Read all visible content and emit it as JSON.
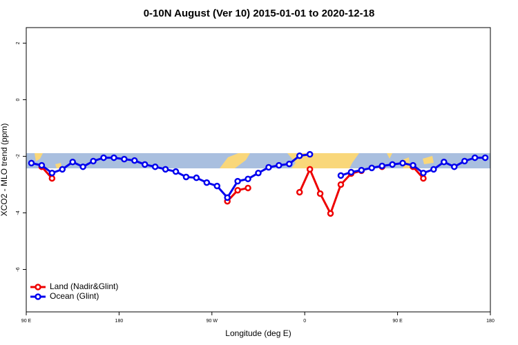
{
  "chart_data": {
    "type": "line",
    "title": "0-10N August (Ver 10)   2015-01-01 to 2020-12-18",
    "xlabel": "Longitude (deg E)",
    "ylabel": "XCO2 - MLO trend (ppm)",
    "x": [
      95,
      105,
      115,
      125,
      135,
      145,
      155,
      165,
      175,
      185,
      195,
      205,
      215,
      225,
      235,
      245,
      255,
      265,
      275,
      285,
      295,
      305,
      315,
      325,
      335,
      345,
      355,
      365,
      375,
      385,
      395,
      405,
      415,
      425,
      435,
      445,
      455,
      465,
      475,
      485,
      495,
      505,
      515,
      525,
      535
    ],
    "series": [
      {
        "name": "Land (Nadir&Glint)",
        "color": "#ee0000",
        "values": [
          null,
          -2.37,
          -2.78,
          null,
          null,
          null,
          null,
          null,
          null,
          null,
          null,
          null,
          null,
          null,
          null,
          null,
          null,
          null,
          null,
          -3.59,
          -3.2,
          -3.12,
          null,
          null,
          null,
          null,
          -3.27,
          -2.46,
          -3.32,
          -4.02,
          -3.0,
          -2.61,
          -2.51,
          null,
          -2.37,
          null,
          null,
          -2.37,
          -2.78,
          null,
          null,
          null,
          null,
          null,
          null
        ]
      },
      {
        "name": "Ocean (Glint)",
        "color": "#0000ee",
        "values": [
          -2.24,
          -2.32,
          -2.59,
          -2.46,
          -2.2,
          -2.37,
          -2.17,
          -2.05,
          -2.05,
          -2.1,
          -2.15,
          -2.29,
          -2.37,
          -2.46,
          -2.54,
          -2.73,
          -2.76,
          -2.93,
          -3.05,
          -3.46,
          -2.88,
          -2.8,
          -2.59,
          -2.39,
          -2.32,
          -2.27,
          -1.98,
          -1.93,
          null,
          null,
          -2.68,
          -2.56,
          -2.49,
          -2.41,
          -2.34,
          -2.29,
          -2.24,
          -2.32,
          -2.59,
          -2.46,
          -2.2,
          -2.37,
          -2.17,
          -2.05,
          -2.05
        ]
      }
    ],
    "xlim": [
      90,
      540
    ],
    "xticks": [
      {
        "value": 90,
        "label": "90 E"
      },
      180,
      {
        "value": 270,
        "label": "90 W"
      },
      {
        "value": 360,
        "label": "0"
      },
      {
        "value": 450,
        "label": "90 E"
      },
      {
        "value": 540,
        "label": "180"
      }
    ],
    "ylim": [
      -7.5,
      2.55
    ],
    "yticks": [
      2,
      0,
      -2,
      -4,
      -6
    ],
    "legend": "bottom-left"
  }
}
